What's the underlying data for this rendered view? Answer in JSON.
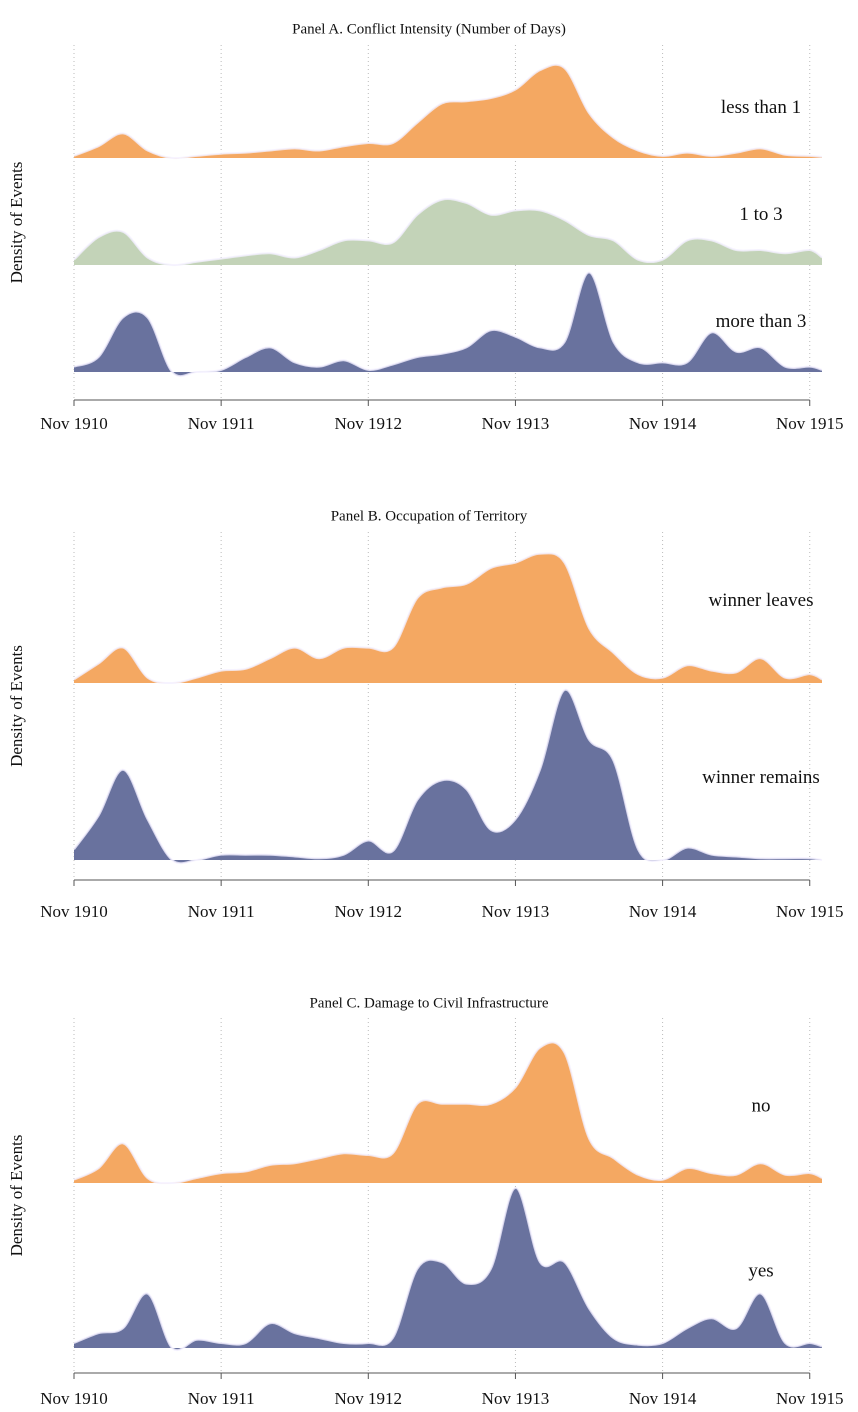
{
  "chart_data": [
    {
      "type": "ridgeline",
      "title": "Panel A. Conflict Intensity (Number of Days)",
      "y_label": "Density of Events",
      "x": [
        "1910-11",
        "1911-01",
        "1911-03",
        "1911-05",
        "1911-07",
        "1911-09",
        "1911-11",
        "1912-01",
        "1912-03",
        "1912-05",
        "1912-07",
        "1912-09",
        "1912-11",
        "1913-01",
        "1913-03",
        "1913-05",
        "1913-07",
        "1913-09",
        "1913-11",
        "1914-01",
        "1914-03",
        "1914-05",
        "1914-07",
        "1914-09",
        "1914-11",
        "1915-01",
        "1915-03",
        "1915-05",
        "1915-07",
        "1915-09",
        "1915-11",
        "1915-12"
      ],
      "xlim": [
        "1910-11",
        "1915-12"
      ],
      "xticks": [
        {
          "value": "1910-11",
          "label": "Nov 1910"
        },
        {
          "value": "1911-11",
          "label": "Nov 1911"
        },
        {
          "value": "1912-11",
          "label": "Nov 1912"
        },
        {
          "value": "1913-11",
          "label": "Nov 1913"
        },
        {
          "value": "1914-11",
          "label": "Nov 1914"
        },
        {
          "value": "1915-11",
          "label": "Nov 1915"
        }
      ],
      "ylim": [
        0,
        100
      ],
      "grid": true,
      "series": [
        {
          "name": "less than 1",
          "color": "#f4a862",
          "values": [
            2,
            11,
            23,
            7,
            0,
            2,
            4,
            5,
            7,
            9,
            7,
            11,
            14,
            14,
            33,
            51,
            53,
            56,
            64,
            82,
            84,
            42,
            19,
            7,
            2,
            5,
            2,
            5,
            9,
            3,
            2,
            1
          ]
        },
        {
          "name": "1 to 3",
          "color": "#c3d3b8",
          "values": [
            5,
            26,
            31,
            7,
            0,
            3,
            6,
            9,
            11,
            7,
            14,
            23,
            23,
            21,
            47,
            61,
            58,
            47,
            51,
            51,
            42,
            28,
            23,
            5,
            5,
            23,
            23,
            14,
            14,
            11,
            14,
            7
          ]
        },
        {
          "name": "more than 3",
          "color": "#69729e",
          "values": [
            5,
            14,
            51,
            51,
            0,
            0,
            2,
            14,
            23,
            9,
            5,
            11,
            2,
            7,
            14,
            17,
            23,
            39,
            33,
            23,
            28,
            93,
            28,
            9,
            9,
            9,
            37,
            19,
            23,
            5,
            5,
            2
          ]
        }
      ]
    },
    {
      "type": "ridgeline",
      "title": "Panel B. Occupation of Territory",
      "y_label": "Density of Events",
      "x": [
        "1910-11",
        "1911-01",
        "1911-03",
        "1911-05",
        "1911-07",
        "1911-09",
        "1911-11",
        "1912-01",
        "1912-03",
        "1912-05",
        "1912-07",
        "1912-09",
        "1912-11",
        "1913-01",
        "1913-03",
        "1913-05",
        "1913-07",
        "1913-09",
        "1913-11",
        "1914-01",
        "1914-03",
        "1914-05",
        "1914-07",
        "1914-09",
        "1914-11",
        "1915-01",
        "1915-03",
        "1915-05",
        "1915-07",
        "1915-09",
        "1915-11",
        "1915-12"
      ],
      "xlim": [
        "1910-11",
        "1915-12"
      ],
      "xticks": [
        {
          "value": "1910-11",
          "label": "Nov 1910"
        },
        {
          "value": "1911-11",
          "label": "Nov 1911"
        },
        {
          "value": "1912-11",
          "label": "Nov 1912"
        },
        {
          "value": "1913-11",
          "label": "Nov 1913"
        },
        {
          "value": "1914-11",
          "label": "Nov 1914"
        },
        {
          "value": "1915-11",
          "label": "Nov 1915"
        }
      ],
      "ylim": [
        0,
        100
      ],
      "grid": true,
      "series": [
        {
          "name": "winner leaves",
          "color": "#f4a862",
          "values": [
            2,
            11,
            20,
            3,
            0,
            3,
            7,
            8,
            14,
            20,
            14,
            20,
            20,
            20,
            48,
            54,
            56,
            65,
            68,
            73,
            68,
            31,
            17,
            5,
            3,
            10,
            7,
            6,
            14,
            3,
            5,
            2
          ]
        },
        {
          "name": "winner remains",
          "color": "#69729e",
          "values": [
            6,
            25,
            51,
            23,
            0,
            0,
            3,
            3,
            3,
            2,
            1,
            3,
            11,
            5,
            34,
            45,
            40,
            17,
            23,
            51,
            96,
            68,
            56,
            6,
            0,
            7,
            3,
            2,
            1,
            1,
            1,
            0
          ]
        }
      ]
    },
    {
      "type": "ridgeline",
      "title": "Panel C. Damage to Civil Infrastructure",
      "y_label": "Density of Events",
      "x": [
        "1910-11",
        "1911-01",
        "1911-03",
        "1911-05",
        "1911-07",
        "1911-09",
        "1911-11",
        "1912-01",
        "1912-03",
        "1912-05",
        "1912-07",
        "1912-09",
        "1912-11",
        "1913-01",
        "1913-03",
        "1913-05",
        "1913-07",
        "1913-09",
        "1913-11",
        "1914-01",
        "1914-03",
        "1914-05",
        "1914-07",
        "1914-09",
        "1914-11",
        "1915-01",
        "1915-03",
        "1915-05",
        "1915-07",
        "1915-09",
        "1915-11",
        "1915-12"
      ],
      "xlim": [
        "1910-11",
        "1915-12"
      ],
      "xticks": [
        {
          "value": "1910-11",
          "label": "Nov 1910"
        },
        {
          "value": "1911-11",
          "label": "Nov 1911"
        },
        {
          "value": "1912-11",
          "label": "Nov 1912"
        },
        {
          "value": "1913-11",
          "label": "Nov 1913"
        },
        {
          "value": "1914-11",
          "label": "Nov 1914"
        },
        {
          "value": "1915-11",
          "label": "Nov 1915"
        }
      ],
      "ylim": [
        0,
        100
      ],
      "grid": true,
      "series": [
        {
          "name": "no",
          "color": "#f4a862",
          "values": [
            2,
            9,
            24,
            3,
            0,
            3,
            6,
            7,
            11,
            12,
            15,
            18,
            17,
            18,
            48,
            48,
            48,
            48,
            58,
            82,
            79,
            27,
            15,
            5,
            2,
            9,
            6,
            5,
            12,
            5,
            6,
            3
          ]
        },
        {
          "name": "yes",
          "color": "#69729e",
          "values": [
            3,
            9,
            12,
            33,
            0,
            5,
            3,
            3,
            15,
            9,
            6,
            3,
            3,
            6,
            48,
            52,
            39,
            48,
            97,
            52,
            52,
            24,
            6,
            2,
            3,
            12,
            18,
            12,
            33,
            3,
            3,
            1
          ]
        }
      ]
    }
  ]
}
